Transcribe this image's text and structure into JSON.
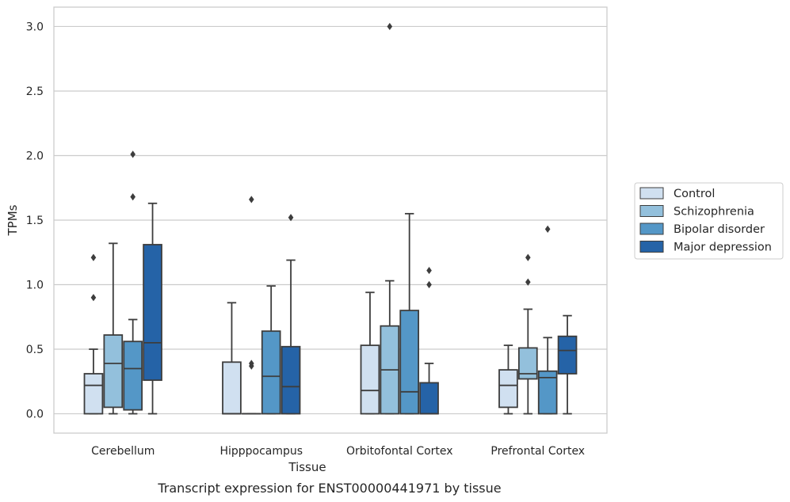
{
  "caption": "Transcript expression for ENST00000441971 by tissue",
  "chart_data": {
    "type": "boxplot",
    "xlabel": "Tissue",
    "ylabel": "TPMs",
    "ylim": [
      -0.15,
      3.15
    ],
    "yticks": [
      "0.0",
      "0.5",
      "1.0",
      "1.5",
      "2.0",
      "2.5",
      "3.0"
    ],
    "grid": "horizontal",
    "legend_position": "right",
    "categories": [
      "Cerebellum",
      "Hipppocampus",
      "Orbitofontal Cortex",
      "Prefrontal Cortex"
    ],
    "series": [
      {
        "name": "Control",
        "color": "#d0e0f0",
        "boxes": [
          {
            "whislo": 0.0,
            "q1": 0.0,
            "med": 0.22,
            "q3": 0.31,
            "whishi": 0.5,
            "fliers": [
              0.9,
              1.21
            ]
          },
          {
            "whislo": 0.0,
            "q1": 0.0,
            "med": 0.0,
            "q3": 0.4,
            "whishi": 0.86,
            "fliers": []
          },
          {
            "whislo": 0.0,
            "q1": 0.0,
            "med": 0.18,
            "q3": 0.53,
            "whishi": 0.94,
            "fliers": []
          },
          {
            "whislo": 0.0,
            "q1": 0.05,
            "med": 0.22,
            "q3": 0.34,
            "whishi": 0.53,
            "fliers": []
          }
        ]
      },
      {
        "name": "Schizophrenia",
        "color": "#93c0dc",
        "boxes": [
          {
            "whislo": 0.0,
            "q1": 0.05,
            "med": 0.39,
            "q3": 0.61,
            "whishi": 1.32,
            "fliers": []
          },
          {
            "whislo": 0.0,
            "q1": 0.0,
            "med": 0.0,
            "q3": 0.0,
            "whishi": 0.0,
            "fliers": [
              0.37,
              0.39,
              1.66
            ]
          },
          {
            "whislo": 0.0,
            "q1": 0.0,
            "med": 0.34,
            "q3": 0.68,
            "whishi": 1.03,
            "fliers": [
              3.0
            ]
          },
          {
            "whislo": 0.0,
            "q1": 0.27,
            "med": 0.31,
            "q3": 0.51,
            "whishi": 0.81,
            "fliers": [
              1.02,
              1.21
            ]
          }
        ]
      },
      {
        "name": "Bipolar disorder",
        "color": "#5497c7",
        "boxes": [
          {
            "whislo": 0.0,
            "q1": 0.03,
            "med": 0.35,
            "q3": 0.56,
            "whishi": 0.73,
            "fliers": [
              1.68,
              2.01
            ]
          },
          {
            "whislo": 0.0,
            "q1": 0.0,
            "med": 0.29,
            "q3": 0.64,
            "whishi": 0.99,
            "fliers": []
          },
          {
            "whislo": 0.0,
            "q1": 0.0,
            "med": 0.17,
            "q3": 0.8,
            "whishi": 1.55,
            "fliers": []
          },
          {
            "whislo": 0.0,
            "q1": 0.0,
            "med": 0.28,
            "q3": 0.33,
            "whishi": 0.59,
            "fliers": [
              1.43
            ]
          }
        ]
      },
      {
        "name": "Major depression",
        "color": "#2563a7",
        "boxes": [
          {
            "whislo": 0.0,
            "q1": 0.26,
            "med": 0.55,
            "q3": 1.31,
            "whishi": 1.63,
            "fliers": []
          },
          {
            "whislo": 0.0,
            "q1": 0.0,
            "med": 0.21,
            "q3": 0.52,
            "whishi": 1.19,
            "fliers": [
              1.52
            ]
          },
          {
            "whislo": 0.0,
            "q1": 0.0,
            "med": 0.0,
            "q3": 0.24,
            "whishi": 0.39,
            "fliers": [
              1.0,
              1.11
            ]
          },
          {
            "whislo": 0.0,
            "q1": 0.31,
            "med": 0.49,
            "q3": 0.6,
            "whishi": 0.76,
            "fliers": []
          }
        ]
      }
    ]
  }
}
